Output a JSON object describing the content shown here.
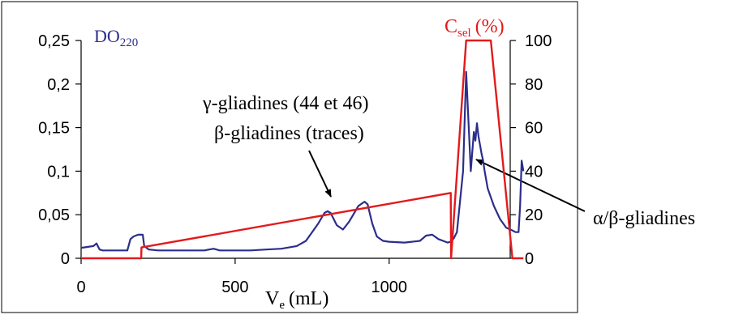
{
  "colors": {
    "absorbance": "#2b2e8a",
    "selectivity": "#e31a1c",
    "axis": "#000000",
    "frame": "#000000"
  },
  "chart_data": {
    "type": "line",
    "title": "",
    "x_axis": {
      "label_main": "V",
      "label_sub": "e",
      "label_unit": "(mL)",
      "ticks": [
        "0",
        "500",
        "1000"
      ],
      "tick_values": [
        0,
        500,
        1000
      ],
      "range": [
        0,
        1400
      ]
    },
    "y_axis_left": {
      "label_main": "DO",
      "label_sub": "220",
      "ticks": [
        "0",
        "0,05",
        "0,1",
        "0,15",
        "0,2",
        "0,25"
      ],
      "tick_values": [
        0,
        0.05,
        0.1,
        0.15,
        0.2,
        0.25
      ],
      "range": [
        0,
        0.25
      ]
    },
    "y_axis_right": {
      "label_main": "C",
      "label_sub": "sel",
      "label_unit": "(%)",
      "ticks": [
        "0",
        "20",
        "40",
        "60",
        "80",
        "100"
      ],
      "tick_values": [
        0,
        20,
        40,
        60,
        80,
        100
      ],
      "range": [
        0,
        100
      ]
    },
    "series": [
      {
        "axis": "left",
        "color": "#2b2e8a",
        "x": [
          0,
          20,
          40,
          50,
          60,
          70,
          100,
          150,
          160,
          170,
          185,
          200,
          205,
          220,
          250,
          300,
          350,
          400,
          430,
          450,
          500,
          550,
          600,
          650,
          700,
          730,
          750,
          770,
          790,
          800,
          810,
          830,
          850,
          870,
          900,
          920,
          930,
          945,
          960,
          980,
          1000,
          1050,
          1100,
          1120,
          1140,
          1160,
          1190,
          1200,
          1210,
          1220,
          1240,
          1250,
          1265,
          1275,
          1280,
          1285,
          1290,
          1295,
          1300,
          1305,
          1310,
          1320,
          1340,
          1360,
          1380,
          1400,
          1410,
          1420,
          1425,
          1430,
          1436
        ],
        "y": [
          0.012,
          0.013,
          0.014,
          0.017,
          0.01,
          0.009,
          0.009,
          0.009,
          0.022,
          0.025,
          0.027,
          0.027,
          0.014,
          0.01,
          0.009,
          0.009,
          0.009,
          0.009,
          0.011,
          0.009,
          0.009,
          0.009,
          0.01,
          0.011,
          0.014,
          0.02,
          0.03,
          0.04,
          0.052,
          0.054,
          0.052,
          0.038,
          0.033,
          0.042,
          0.06,
          0.065,
          0.062,
          0.04,
          0.025,
          0.02,
          0.019,
          0.018,
          0.02,
          0.026,
          0.027,
          0.022,
          0.018,
          0.019,
          0.023,
          0.03,
          0.1,
          0.214,
          0.1,
          0.145,
          0.135,
          0.155,
          0.14,
          0.13,
          0.12,
          0.112,
          0.1,
          0.08,
          0.06,
          0.045,
          0.035,
          0.032,
          0.03,
          0.03,
          0.06,
          0.112,
          0.1
        ]
      },
      {
        "axis": "right",
        "color": "#e31a1c",
        "x": [
          0,
          195,
          196,
          1200,
          1201,
          1250,
          1330,
          1400,
          1401,
          1436
        ],
        "y": [
          0,
          0,
          5,
          30,
          0,
          100,
          100,
          0,
          0,
          0
        ]
      }
    ],
    "annotations": [
      {
        "label": "γ-gliadines (44 et 46)"
      },
      {
        "label": "β-gliadines (traces)"
      },
      {
        "label": "α/β-gliadines"
      }
    ]
  }
}
